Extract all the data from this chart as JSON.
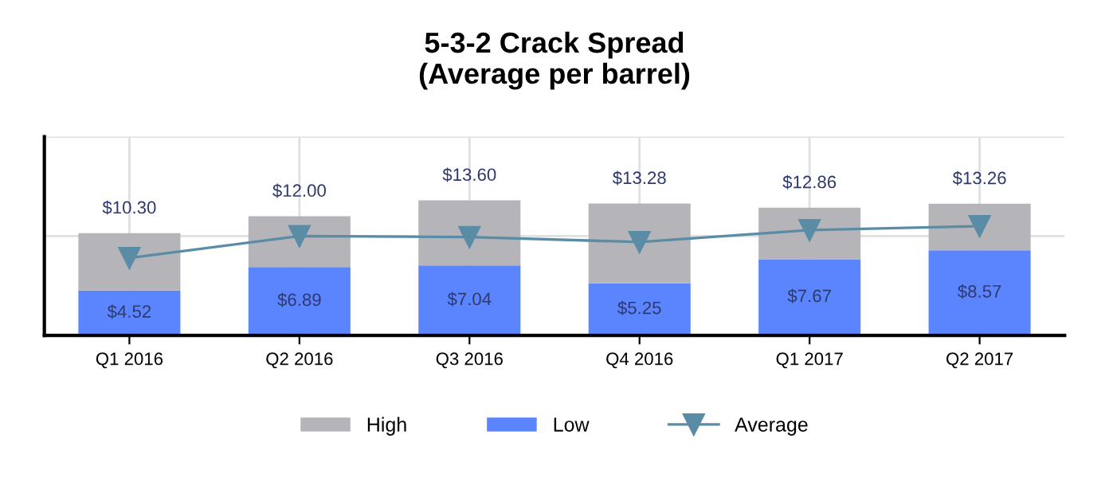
{
  "chart_data": {
    "type": "bar",
    "title": "5-3-2 Crack Spread\n(Average per barrel)",
    "categories": [
      "Q1 2016",
      "Q2 2016",
      "Q3 2016",
      "Q4 2016",
      "Q1 2017",
      "Q2 2017"
    ],
    "stacked": true,
    "series": [
      {
        "name": "Low",
        "color": "#5b84ff",
        "values": [
          4.52,
          6.89,
          7.04,
          5.25,
          7.67,
          8.57
        ],
        "value_labels": [
          "$4.52",
          "$6.89",
          "$7.04",
          "$5.25",
          "$7.67",
          "$8.57"
        ]
      },
      {
        "name": "High",
        "color": "#b5b5b9",
        "values": [
          5.78,
          5.11,
          6.56,
          8.03,
          5.19,
          4.69
        ]
      },
      {
        "name": "Average",
        "type": "line",
        "color": "#5a8ca6",
        "marker": "triangle",
        "values": [
          7.8,
          10.0,
          9.9,
          9.4,
          10.6,
          11.0
        ]
      }
    ],
    "totals": [
      "$10.30",
      "$12.00",
      "$13.60",
      "$13.28",
      "$12.86",
      "$13.26"
    ],
    "ylim": [
      0,
      20
    ],
    "yticks": [
      {
        "value": 0,
        "label": null
      },
      {
        "value": 10,
        "label": null
      },
      {
        "value": 20,
        "label": null
      }
    ],
    "tick_labels": "x",
    "grid": true,
    "legend": "bottom"
  }
}
